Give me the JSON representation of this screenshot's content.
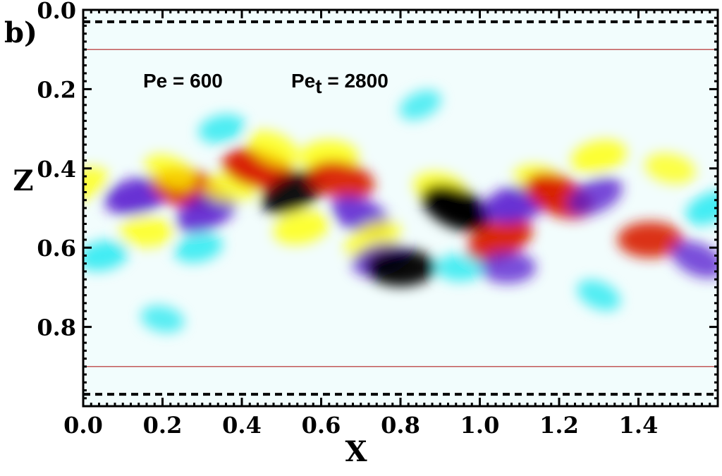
{
  "panel_label": "b)",
  "chart_data": {
    "type": "heatmap",
    "title": "",
    "xlabel": "X",
    "ylabel": "Z",
    "xlim": [
      0.0,
      1.6
    ],
    "ylim": [
      1.0,
      0.0
    ],
    "y_inverted": true,
    "xticks": [
      "0.0",
      "0.2",
      "0.4",
      "0.6",
      "0.8",
      "1.0",
      "1.2",
      "1.4"
    ],
    "yticks": [
      "0.0",
      "0.2",
      "0.4",
      "0.6",
      "0.8"
    ],
    "x_tick_values": [
      0.0,
      0.2,
      0.4,
      0.6,
      0.8,
      1.0,
      1.2,
      1.4
    ],
    "y_tick_values": [
      0.0,
      0.2,
      0.4,
      0.6,
      0.8
    ],
    "grid": false,
    "annotations": {
      "pe": "Pe = 600",
      "pet_main": "Pe",
      "pet_sub": "t",
      "pet_value": " = 2800"
    },
    "horizontal_lines": [
      {
        "z": 0.03,
        "style": "dashed",
        "color": "#000000"
      },
      {
        "z": 0.97,
        "style": "dashed",
        "color": "#000000"
      },
      {
        "z": 0.1,
        "style": "solid",
        "color": "#b22222"
      },
      {
        "z": 0.9,
        "style": "solid",
        "color": "#b22222"
      }
    ],
    "colormap": [
      "#000000",
      "#5a1fd0",
      "#00e5ee",
      "#ffffff",
      "#ffff00",
      "#d81e05"
    ],
    "features": [
      {
        "x": 0.0,
        "z": 0.44,
        "value": 0.45
      },
      {
        "x": 0.135,
        "z": 0.47,
        "value": -0.8
      },
      {
        "x": 0.16,
        "z": 0.56,
        "value": 0.5
      },
      {
        "x": 0.26,
        "z": 0.45,
        "value": 0.95
      },
      {
        "x": 0.22,
        "z": 0.41,
        "value": 0.5
      },
      {
        "x": 0.31,
        "z": 0.51,
        "value": -0.75
      },
      {
        "x": 0.29,
        "z": 0.6,
        "value": -0.35
      },
      {
        "x": 0.37,
        "z": 0.45,
        "value": 0.45
      },
      {
        "x": 0.44,
        "z": 0.4,
        "value": 0.95
      },
      {
        "x": 0.48,
        "z": 0.35,
        "value": 0.5
      },
      {
        "x": 0.53,
        "z": 0.46,
        "value": -0.85
      },
      {
        "x": 0.55,
        "z": 0.55,
        "value": 0.55
      },
      {
        "x": 0.62,
        "z": 0.37,
        "value": 0.6
      },
      {
        "x": 0.65,
        "z": 0.43,
        "value": 0.85
      },
      {
        "x": 0.7,
        "z": 0.52,
        "value": -0.7
      },
      {
        "x": 0.73,
        "z": 0.58,
        "value": 0.6
      },
      {
        "x": 0.75,
        "z": 0.63,
        "value": -0.6
      },
      {
        "x": 0.8,
        "z": 0.65,
        "value": -0.9
      },
      {
        "x": 0.9,
        "z": 0.45,
        "value": 0.5
      },
      {
        "x": 0.94,
        "z": 0.5,
        "value": -1.0
      },
      {
        "x": 1.05,
        "z": 0.58,
        "value": 0.9
      },
      {
        "x": 1.09,
        "z": 0.49,
        "value": -0.8
      },
      {
        "x": 1.07,
        "z": 0.65,
        "value": -0.55
      },
      {
        "x": 1.15,
        "z": 0.43,
        "value": 0.45
      },
      {
        "x": 1.2,
        "z": 0.47,
        "value": 0.95
      },
      {
        "x": 1.29,
        "z": 0.47,
        "value": -0.6
      },
      {
        "x": 1.3,
        "z": 0.37,
        "value": 0.55
      },
      {
        "x": 1.43,
        "z": 0.58,
        "value": 0.8
      },
      {
        "x": 1.48,
        "z": 0.4,
        "value": 0.4
      },
      {
        "x": 1.55,
        "z": 0.63,
        "value": -0.55
      },
      {
        "x": 1.58,
        "z": 0.5,
        "value": -0.4
      },
      {
        "x": 0.35,
        "z": 0.3,
        "value": -0.3
      },
      {
        "x": 0.95,
        "z": 0.65,
        "value": -0.3
      },
      {
        "x": 0.2,
        "z": 0.78,
        "value": -0.2
      },
      {
        "x": 1.3,
        "z": 0.72,
        "value": -0.25
      },
      {
        "x": 0.85,
        "z": 0.24,
        "value": -0.2
      },
      {
        "x": 0.05,
        "z": 0.62,
        "value": -0.4
      }
    ]
  }
}
